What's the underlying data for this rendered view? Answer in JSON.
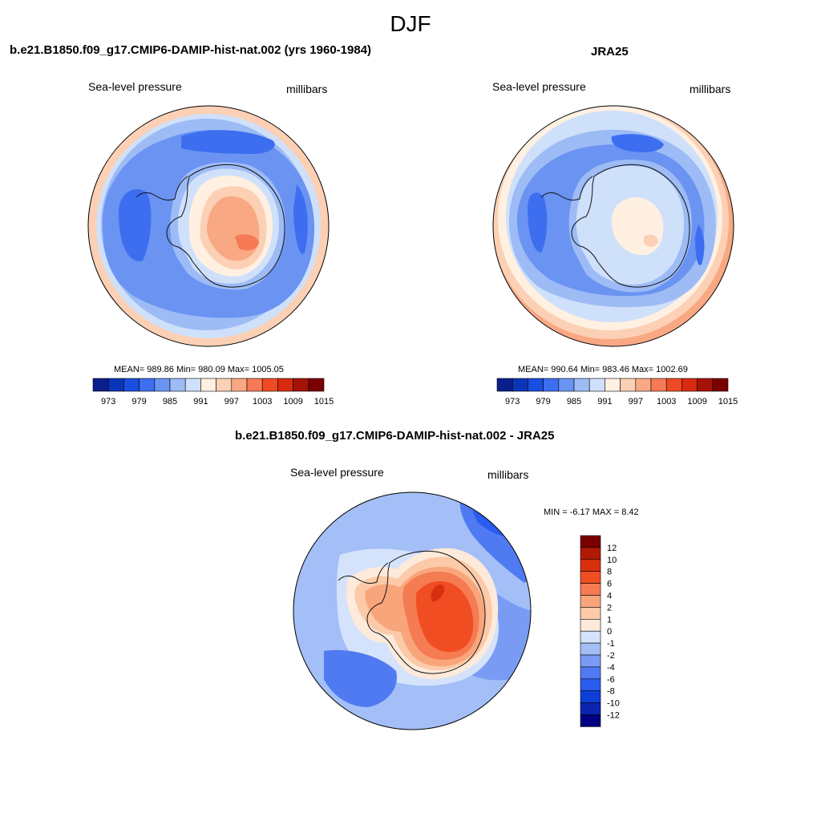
{
  "figure": {
    "title": "DJF"
  },
  "palette": {
    "abs_colors": [
      "#0a1e8c",
      "#0b35b8",
      "#1a4ee0",
      "#3d6ef0",
      "#6a93f2",
      "#9dbbf5",
      "#cfe0fa",
      "#fff0e2",
      "#fcd0b4",
      "#f9a884",
      "#f57a55",
      "#ee4b25",
      "#d82a10",
      "#a51208",
      "#7a0000"
    ],
    "diff_colors": [
      "#000080",
      "#0b24b0",
      "#0d3fd8",
      "#2a5cf0",
      "#4f7af2",
      "#7a9bf4",
      "#a4bff7",
      "#d4e3fb",
      "#fdeadb",
      "#fccaa8",
      "#f9a57c",
      "#f57b52",
      "#f04e22",
      "#d8300e",
      "#b01a05",
      "#7a0000"
    ]
  },
  "panels": {
    "model": {
      "title": "b.e21.B1850.f09_g17.CMIP6-DAMIP-hist-nat.002 (yrs 1960-1984)",
      "variable": "Sea-level pressure",
      "units": "millibars",
      "stats": "MEAN= 989.86  Min= 980.09  Max= 1005.05"
    },
    "obs": {
      "title": "JRA25",
      "variable": "Sea-level pressure",
      "units": "millibars",
      "stats": "MEAN= 990.64  Min= 983.46  Max= 1002.69"
    },
    "diff": {
      "title": "b.e21.B1850.f09_g17.CMIP6-DAMIP-hist-nat.002 - JRA25",
      "variable": "Sea-level pressure",
      "units": "millibars",
      "stats": "MIN =  -6.17 MAX =   8.42"
    }
  },
  "colorbar_abs": {
    "tick_labels": [
      "973",
      "979",
      "985",
      "991",
      "997",
      "1003",
      "1009",
      "1015"
    ]
  },
  "colorbar_diff": {
    "tick_labels": [
      "12",
      "10",
      "8",
      "6",
      "4",
      "2",
      "1",
      "0",
      "-1",
      "-2",
      "-4",
      "-6",
      "-8",
      "-10",
      "-12"
    ]
  }
}
